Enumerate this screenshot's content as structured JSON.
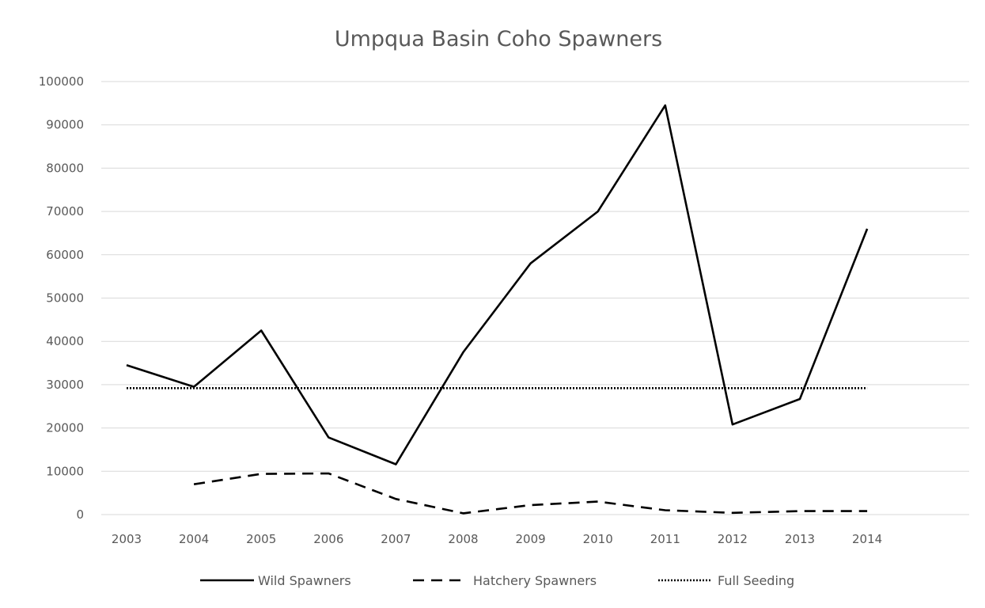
{
  "chart_data": {
    "type": "line",
    "title": "Umpqua Basin Coho Spawners",
    "xlabel": "",
    "ylabel": "",
    "categories": [
      "2003",
      "2004",
      "2005",
      "2006",
      "2007",
      "2008",
      "2009",
      "2010",
      "2011",
      "2012",
      "2013",
      "2014"
    ],
    "ylim": [
      0,
      100000
    ],
    "yticks": [
      0,
      10000,
      20000,
      30000,
      40000,
      50000,
      60000,
      70000,
      80000,
      90000,
      100000
    ],
    "grid": true,
    "legend_position": "bottom",
    "series": [
      {
        "name": "Wild Spawners",
        "style": "solid",
        "color": "#000000",
        "values": [
          34500,
          29500,
          42500,
          17800,
          11600,
          37500,
          58000,
          70000,
          94500,
          20800,
          26700,
          66000
        ]
      },
      {
        "name": "Hatchery Spawners",
        "style": "dashed",
        "color": "#000000",
        "values": [
          null,
          7000,
          9400,
          9500,
          3600,
          300,
          2200,
          3000,
          1000,
          400,
          800,
          800
        ]
      },
      {
        "name": "Full Seeding",
        "style": "dotted",
        "color": "#000000",
        "values": [
          29200,
          29200,
          29200,
          29200,
          29200,
          29200,
          29200,
          29200,
          29200,
          29200,
          29200,
          29200
        ]
      }
    ]
  }
}
